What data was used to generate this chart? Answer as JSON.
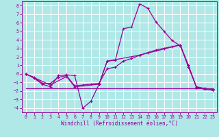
{
  "xlabel": "Windchill (Refroidissement éolien,°C)",
  "background_color": "#b0e8e8",
  "grid_color": "#ffffff",
  "line_color": "#990099",
  "xlim": [
    -0.5,
    23.5
  ],
  "ylim": [
    -4.5,
    8.5
  ],
  "xticks": [
    0,
    1,
    2,
    3,
    4,
    5,
    6,
    7,
    8,
    9,
    10,
    11,
    12,
    13,
    14,
    15,
    16,
    17,
    18,
    19,
    20,
    21,
    22,
    23
  ],
  "yticks": [
    -4,
    -3,
    -2,
    -1,
    0,
    1,
    2,
    3,
    4,
    5,
    6,
    7,
    8
  ],
  "line1_x": [
    0,
    1,
    2,
    3,
    4,
    5,
    6,
    7,
    8,
    9,
    10,
    11,
    12,
    13,
    14,
    15,
    16,
    17,
    18,
    19,
    20,
    21,
    22,
    23
  ],
  "line1_y": [
    0,
    -0.5,
    -1.2,
    -1.5,
    -0.2,
    -0.1,
    -0.2,
    -4.0,
    -3.2,
    -1.2,
    1.5,
    1.6,
    5.3,
    5.5,
    8.2,
    7.7,
    6.1,
    5.0,
    3.9,
    3.3,
    1.0,
    -1.6,
    -1.8,
    -1.9
  ],
  "line2_x": [
    0,
    1,
    2,
    3,
    4,
    5,
    6,
    7,
    8,
    9,
    10,
    11,
    12,
    13,
    14,
    15,
    16,
    17,
    18,
    19,
    20,
    21,
    22,
    23
  ],
  "line2_y": [
    0,
    -0.4,
    -1.1,
    -1.1,
    -0.4,
    -0.2,
    -1.4,
    -1.3,
    -1.2,
    -1.1,
    0.6,
    0.8,
    1.5,
    1.8,
    2.2,
    2.5,
    2.8,
    3.0,
    3.2,
    3.4,
    0.8,
    -1.5,
    -1.7,
    -1.8
  ],
  "line3_x": [
    0,
    3,
    5,
    6,
    9,
    10,
    14,
    19,
    20,
    21,
    22,
    23
  ],
  "line3_y": [
    0,
    -1.3,
    -0.3,
    -1.5,
    -1.2,
    1.5,
    2.2,
    3.4,
    1.0,
    -1.6,
    -1.7,
    -1.8
  ],
  "line4_x": [
    0,
    23
  ],
  "line4_y": [
    -1.7,
    -1.7
  ],
  "xlabel_fontsize": 5.5,
  "tick_fontsize": 4.8
}
